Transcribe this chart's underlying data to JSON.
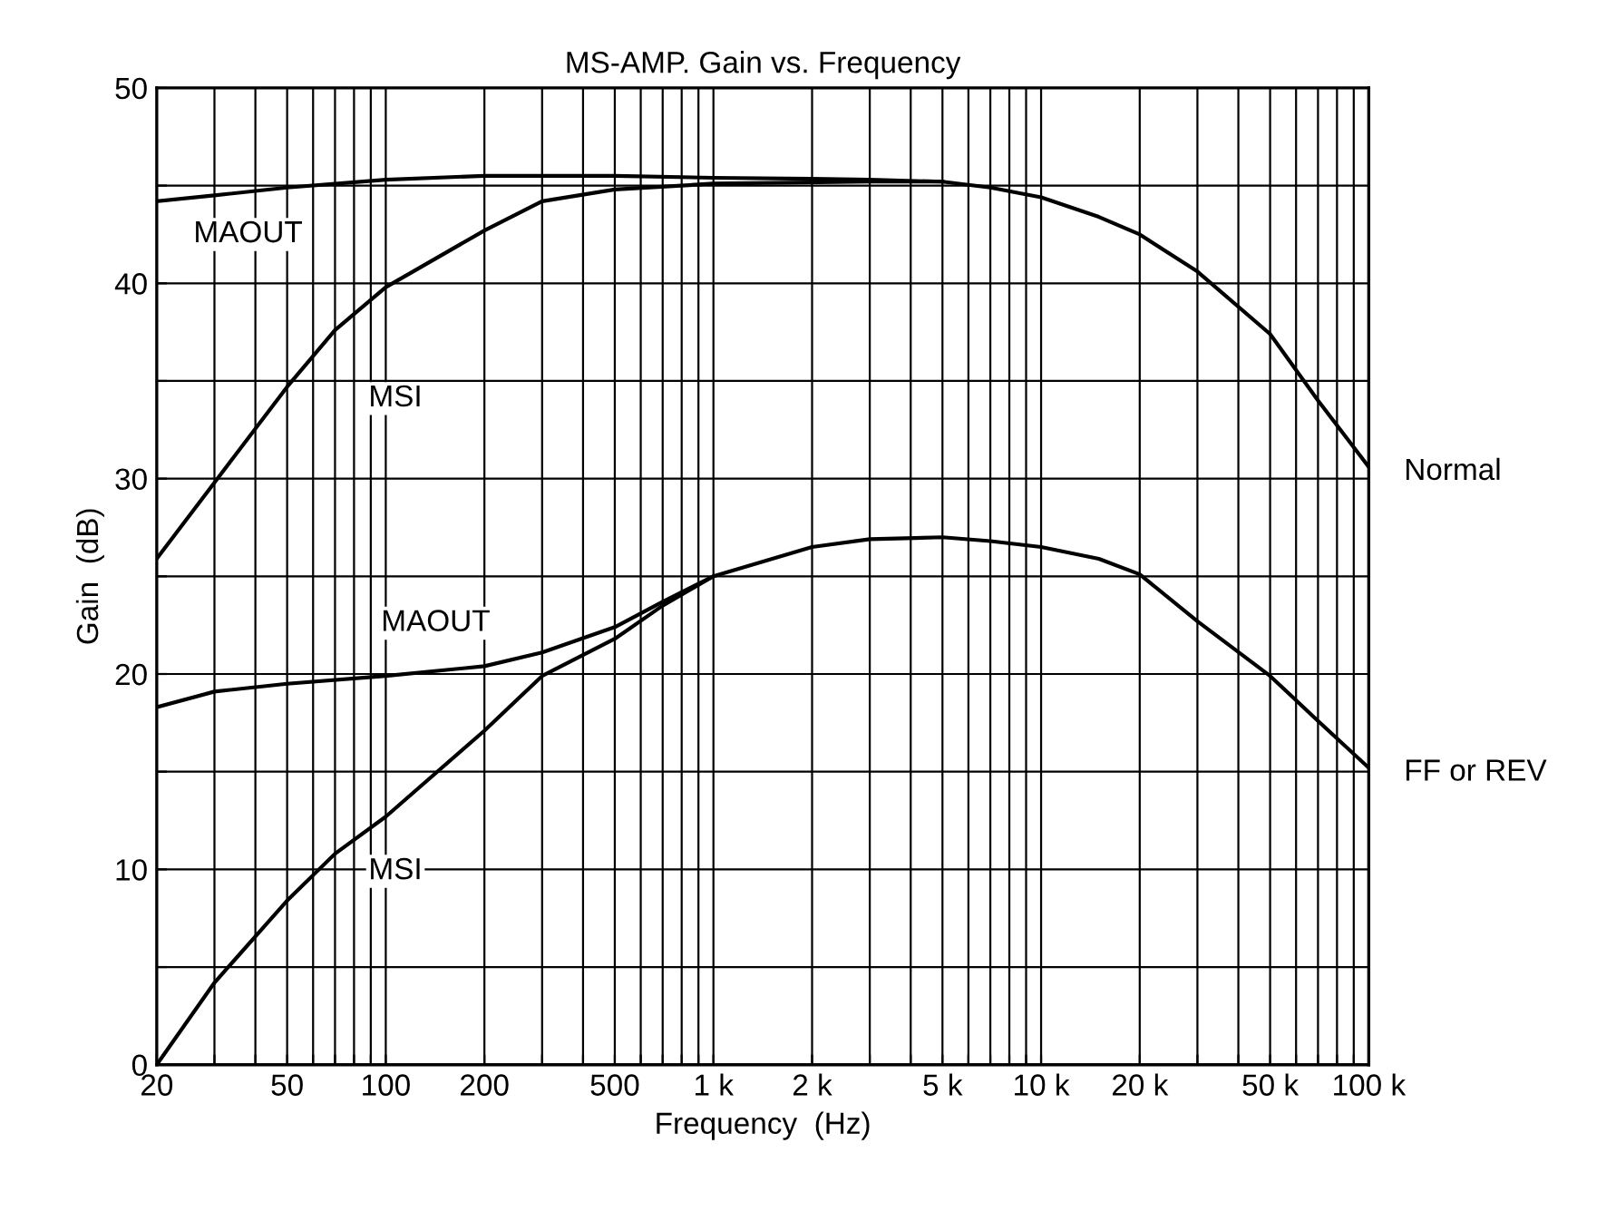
{
  "chart_data": {
    "type": "line",
    "title": "MS-AMP. Gain vs. Frequency",
    "xlabel": "Frequency  (Hz)",
    "ylabel": "Gain  (dB)",
    "log": "x",
    "grid": true,
    "marker": "none",
    "line_style": "solid",
    "xlim": [
      20,
      100000
    ],
    "ylim": [
      0,
      50
    ],
    "xticks": [
      20,
      {
        "value": 30,
        "label": null
      },
      {
        "value": 40,
        "label": null
      },
      50,
      {
        "value": 60,
        "label": null
      },
      {
        "value": 70,
        "label": null
      },
      {
        "value": 80,
        "label": null
      },
      {
        "value": 90,
        "label": null
      },
      100,
      200,
      {
        "value": 300,
        "label": null
      },
      {
        "value": 400,
        "label": null
      },
      500,
      {
        "value": 600,
        "label": null
      },
      {
        "value": 700,
        "label": null
      },
      {
        "value": 800,
        "label": null
      },
      {
        "value": 900,
        "label": null
      },
      {
        "value": 1000,
        "label": "1 k"
      },
      {
        "value": 2000,
        "label": "2 k"
      },
      {
        "value": 3000,
        "label": null
      },
      {
        "value": 4000,
        "label": null
      },
      {
        "value": 5000,
        "label": "5 k"
      },
      {
        "value": 6000,
        "label": null
      },
      {
        "value": 7000,
        "label": null
      },
      {
        "value": 8000,
        "label": null
      },
      {
        "value": 9000,
        "label": null
      },
      {
        "value": 10000,
        "label": "10 k"
      },
      {
        "value": 20000,
        "label": "20 k"
      },
      {
        "value": 30000,
        "label": null
      },
      {
        "value": 40000,
        "label": null
      },
      {
        "value": 50000,
        "label": "50 k"
      },
      {
        "value": 60000,
        "label": null
      },
      {
        "value": 70000,
        "label": null
      },
      {
        "value": 80000,
        "label": null
      },
      {
        "value": 90000,
        "label": null
      },
      {
        "value": 100000,
        "label": "100 k"
      }
    ],
    "yticks": [
      0,
      {
        "value": 5,
        "label": null
      },
      10,
      {
        "value": 15,
        "label": null
      },
      20,
      {
        "value": 25,
        "label": null
      },
      30,
      {
        "value": 35,
        "label": null
      },
      40,
      {
        "value": 45,
        "label": null
      },
      50
    ],
    "series": [
      {
        "name": "MAOUT",
        "color": "#000000",
        "x": [
          20,
          30,
          50,
          100,
          200,
          500,
          1000,
          2000,
          3000,
          5000,
          7000,
          10000,
          15000,
          20000,
          30000,
          50000,
          70000,
          100000
        ],
        "values": [
          44.2,
          44.5,
          44.9,
          45.3,
          45.5,
          45.5,
          45.4,
          45.35,
          45.3,
          45.2,
          44.9,
          44.4,
          43.4,
          42.5,
          40.6,
          37.4,
          34,
          30.6
        ]
      },
      {
        "name": "MSI",
        "color": "#000000",
        "x": [
          20,
          30,
          50,
          70,
          100,
          200,
          300,
          500,
          1000,
          3000,
          5000
        ],
        "values": [
          25.9,
          29.8,
          34.7,
          37.6,
          39.8,
          42.7,
          44.2,
          44.8,
          45.1,
          45.2,
          45.2
        ]
      },
      {
        "name": "MAOUT",
        "color": "#000000",
        "x": [
          20,
          30,
          50,
          100,
          200,
          300,
          500,
          700,
          1000
        ],
        "values": [
          18.3,
          19.1,
          19.5,
          19.9,
          20.4,
          21.1,
          22.4,
          23.7,
          25
        ]
      },
      {
        "name": "MSI",
        "color": "#000000",
        "x": [
          20,
          30,
          50,
          70,
          100,
          200,
          300,
          500,
          700,
          1000,
          2000,
          3000,
          5000,
          7000,
          10000,
          15000,
          20000,
          30000,
          50000,
          70000,
          100000
        ],
        "values": [
          0,
          4.2,
          8.4,
          10.8,
          12.7,
          17.1,
          19.9,
          21.8,
          23.5,
          25,
          26.5,
          26.9,
          27,
          26.8,
          26.5,
          25.9,
          25.1,
          22.7,
          19.9,
          17.6,
          15.2
        ]
      }
    ],
    "annotations": [
      "Normal",
      "FF or REV"
    ]
  }
}
